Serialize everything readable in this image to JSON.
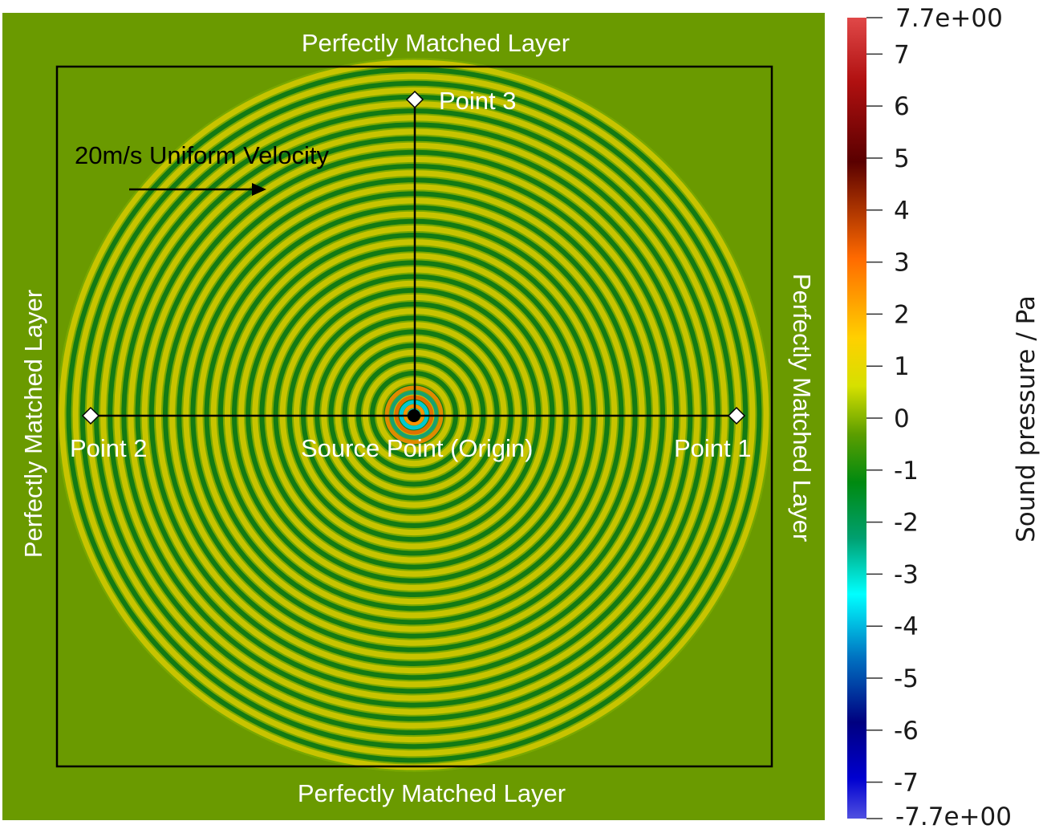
{
  "labels": {
    "pml_top": "Perfectly Matched Layer",
    "pml_bottom": "Perfectly Matched Layer",
    "pml_left": "Perfectly Matched Layer",
    "pml_right": "Perfectly Matched Layer",
    "velocity": "20m/s Uniform Velocity",
    "point1": "Point 1",
    "point2": "Point 2",
    "point3": "Point 3",
    "source": "Source Point (Origin)"
  },
  "colorbar": {
    "title": "Sound pressure / Pa",
    "max_label": "7.7e+00",
    "min_label": "-7.7e+00",
    "range": [
      -7.7,
      7.7
    ],
    "ticks": [
      "7",
      "6",
      "5",
      "4",
      "3",
      "2",
      "1",
      "0",
      "-1",
      "-2",
      "-3",
      "-4",
      "-5",
      "-6",
      "-7"
    ],
    "colormap": [
      "#3b4cc0",
      "#0000ff",
      "#00ffff",
      "#008000",
      "#ffff00",
      "#ff8000",
      "#800000",
      "#e04040"
    ]
  },
  "colors": {
    "background_field": "#6a9a00",
    "wave_crest": "#c8c800",
    "wave_trough": "#107010",
    "frame": "#000000",
    "marker": "#ffffff"
  }
}
